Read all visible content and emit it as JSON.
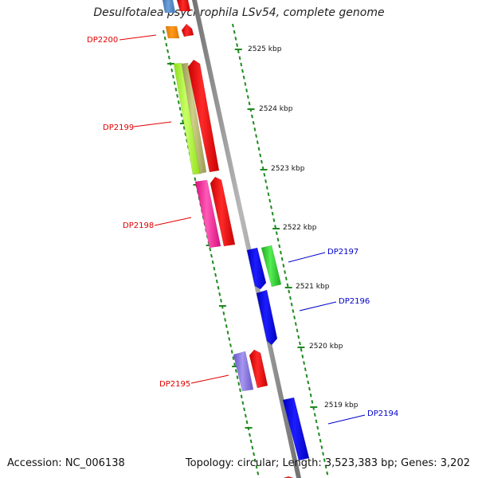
{
  "title": "Desulfotalea psychrophila LSv54, complete genome",
  "accession_label": "Accession: NC_006138",
  "summary_label": "Topology: circular; Length: 3,523,383 bp; Genes: 3,202",
  "colors": {
    "backbone": "#8c8c8c",
    "ticks": "#1f8a1f",
    "label_red": "#e00000",
    "label_blue": "#0000cc"
  },
  "ruler_labels": [
    "2525 kbp",
    "2524 kbp",
    "2523 kbp",
    "2522 kbp",
    "2521 kbp",
    "2520 kbp",
    "2519 kbp"
  ],
  "gene_labels": [
    {
      "text": "DP2200",
      "strand": "forward"
    },
    {
      "text": "DP2199",
      "strand": "forward"
    },
    {
      "text": "DP2198",
      "strand": "forward"
    },
    {
      "text": "DP2197",
      "strand": "reverse"
    },
    {
      "text": "DP2196",
      "strand": "reverse"
    },
    {
      "text": "DP2195",
      "strand": "forward"
    },
    {
      "text": "DP2194",
      "strand": "reverse"
    }
  ]
}
